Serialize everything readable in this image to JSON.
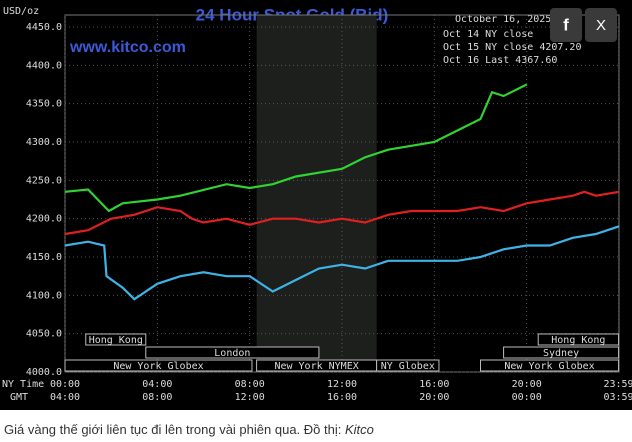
{
  "chart_data": {
    "type": "line",
    "title": "24 Hour Spot Gold (Bid)",
    "subtitle": "www.kitco.com",
    "date": "October 16, 2025",
    "ylabel": "USD/oz",
    "xlabel": "NY Time",
    "x2label": "GMT",
    "xlim": [
      0,
      24
    ],
    "ylim": [
      4000,
      4450
    ],
    "yticks": [
      {
        "value": 4000,
        "label": "4000.0"
      },
      {
        "value": 4050,
        "label": "4050.0"
      },
      {
        "value": 4100,
        "label": "4100.0"
      },
      {
        "value": 4150,
        "label": "4150.0"
      },
      {
        "value": 4200,
        "label": "4200.0"
      },
      {
        "value": 4250,
        "label": "4250.0"
      },
      {
        "value": 4300,
        "label": "4300.0"
      },
      {
        "value": 4350,
        "label": "4350.0"
      },
      {
        "value": 4400,
        "label": "4400.0"
      },
      {
        "value": 4450,
        "label": "4450.0"
      }
    ],
    "xticks": [
      {
        "value": 0,
        "label": "00:00"
      },
      {
        "value": 4,
        "label": "04:00"
      },
      {
        "value": 8,
        "label": "08:00"
      },
      {
        "value": 12,
        "label": "12:00"
      },
      {
        "value": 16,
        "label": "16:00"
      },
      {
        "value": 20,
        "label": "20:00"
      },
      {
        "value": 23.98,
        "label": "23:59"
      }
    ],
    "x2ticks": [
      {
        "value": 0,
        "label": "04:00"
      },
      {
        "value": 4,
        "label": "08:00"
      },
      {
        "value": 8,
        "label": "12:00"
      },
      {
        "value": 12,
        "label": "16:00"
      },
      {
        "value": 16,
        "label": "20:00"
      },
      {
        "value": 20,
        "label": "00:00"
      },
      {
        "value": 23.98,
        "label": "03:59"
      }
    ],
    "grid": true,
    "series": [
      {
        "name": "Oct 14 NY close",
        "color": "#3fb3e6",
        "x": [
          0,
          1,
          1.7,
          1.8,
          2.5,
          3,
          4,
          5,
          6,
          7,
          8,
          9,
          10,
          11,
          12,
          13,
          14,
          15,
          16,
          17,
          18,
          19,
          20,
          21,
          22,
          23,
          24
        ],
        "values": [
          4165,
          4170,
          4165,
          4125,
          4110,
          4095,
          4115,
          4125,
          4130,
          4125,
          4125,
          4105,
          4120,
          4135,
          4140,
          4135,
          4145,
          4145,
          4145,
          4145,
          4150,
          4160,
          4165,
          4165,
          4175,
          4180,
          4190
        ]
      },
      {
        "name": "Oct 15 NY close 4207.20",
        "color": "#e02020",
        "x": [
          0,
          1,
          2,
          3,
          4,
          5,
          5.5,
          6,
          7,
          8,
          9,
          10,
          11,
          12,
          13,
          14,
          15,
          16,
          17,
          18,
          19,
          20,
          21,
          22,
          22.5,
          23,
          24
        ],
        "values": [
          4180,
          4185,
          4200,
          4205,
          4215,
          4210,
          4200,
          4195,
          4200,
          4192,
          4200,
          4200,
          4195,
          4200,
          4195,
          4205,
          4210,
          4210,
          4210,
          4215,
          4210,
          4220,
          4225,
          4230,
          4235,
          4230,
          4235
        ]
      },
      {
        "name": "Oct 16 Last 4367.60",
        "color": "#32d232",
        "x": [
          0,
          1,
          1.9,
          2.5,
          4,
          5,
          7,
          8,
          9,
          10,
          12,
          13,
          14,
          15,
          16,
          17,
          18,
          18.5,
          19,
          20
        ],
        "values": [
          4235,
          4238,
          4210,
          4220,
          4225,
          4230,
          4245,
          4240,
          4245,
          4255,
          4265,
          4280,
          4290,
          4295,
          4300,
          4315,
          4330,
          4365,
          4360,
          4375
        ]
      }
    ],
    "sessions": [
      {
        "label": "Hong Kong",
        "start": 0.9,
        "end": 3.5,
        "row": 0
      },
      {
        "label": "Hong Kong",
        "start": 20.5,
        "end": 23.98,
        "row": 0
      },
      {
        "label": "London",
        "start": 3.5,
        "end": 11,
        "row": 1
      },
      {
        "label": "Sydney",
        "start": 19,
        "end": 23.98,
        "row": 1
      },
      {
        "label": "New York Globex",
        "start": 0,
        "end": 8.1,
        "row": 2
      },
      {
        "label": "New York NYMEX",
        "start": 8.3,
        "end": 13.5,
        "row": 2
      },
      {
        "label": "NY Globex",
        "start": 13.5,
        "end": 16.2,
        "row": 2
      },
      {
        "label": "New York Globex",
        "start": 18,
        "end": 23.98,
        "row": 2
      }
    ],
    "shaded": [
      8.3,
      13.5
    ]
  },
  "caption": {
    "text": "Giá vàng thế giới liên tục đi lên trong vài phiên qua. Đồ thị: ",
    "source": "Kitco"
  },
  "share": {
    "facebook": "f",
    "x": "X"
  }
}
